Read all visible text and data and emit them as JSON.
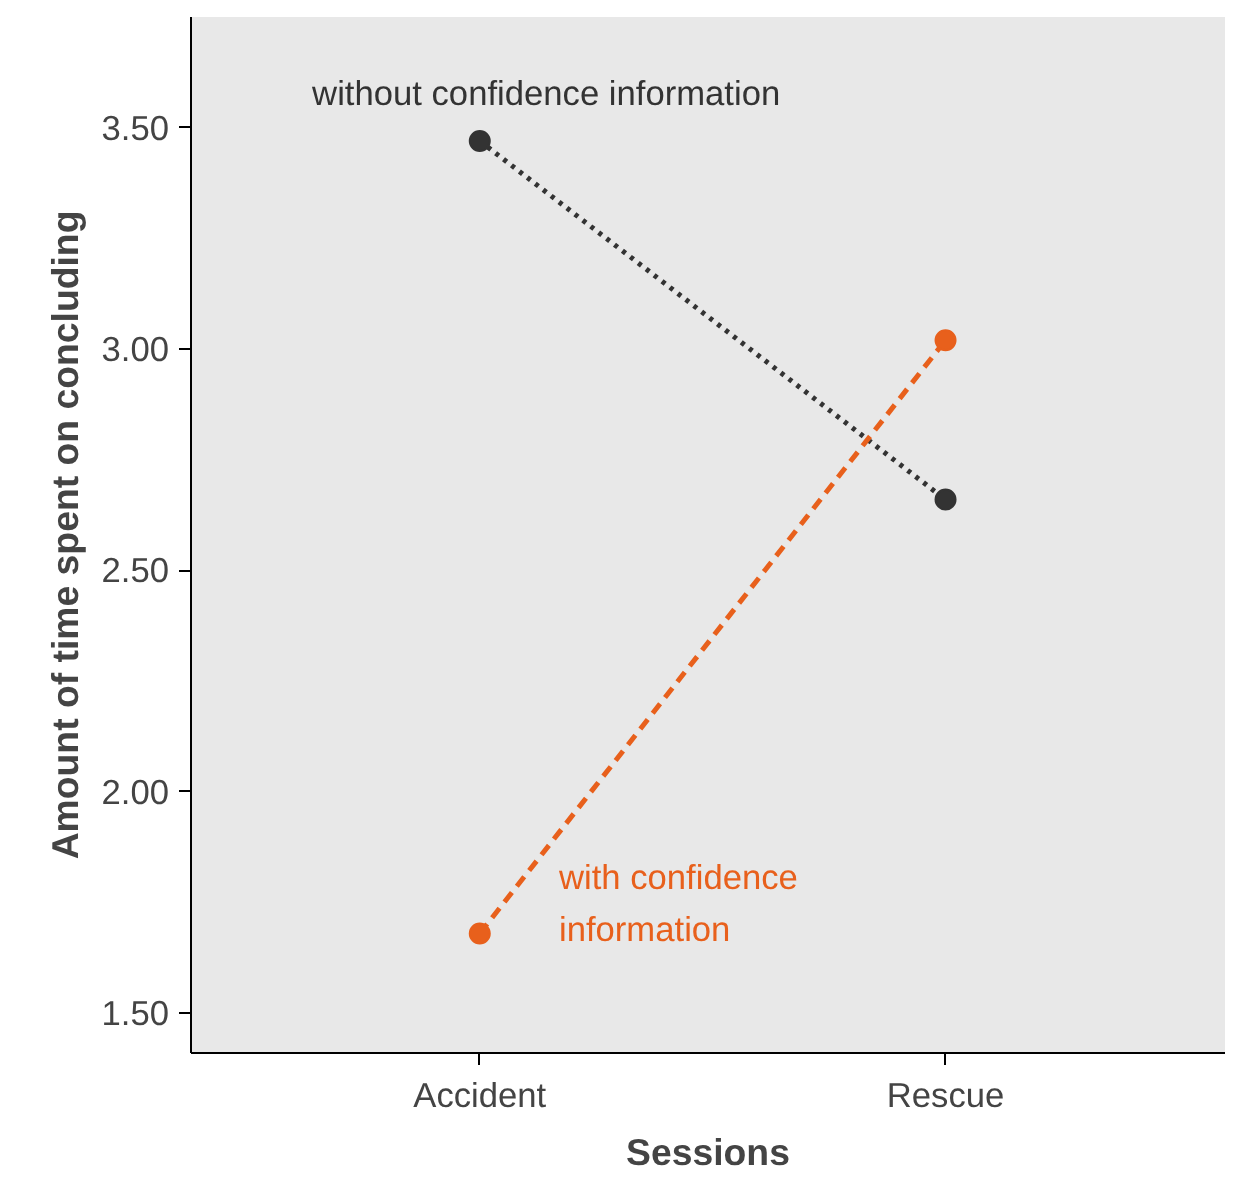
{
  "chart_data": {
    "type": "line",
    "xlabel": "Sessions",
    "ylabel": "Amount of time spent on concluding",
    "categories": [
      "Accident",
      "Rescue"
    ],
    "series": [
      {
        "name": "without confidence information",
        "color": "#333333",
        "values": [
          3.47,
          2.66
        ],
        "line_style": "dotted"
      },
      {
        "name": "with confidence\ninformation",
        "color": "#e8601c",
        "values": [
          1.68,
          3.02
        ],
        "line_style": "dashed"
      }
    ],
    "ylim": [
      1.41,
      3.75
    ],
    "yticks": [
      {
        "value": 1.5,
        "label": "1.50"
      },
      {
        "value": 2.0,
        "label": "2.00"
      },
      {
        "value": 2.5,
        "label": "2.50"
      },
      {
        "value": 3.0,
        "label": "3.00"
      },
      {
        "value": 3.5,
        "label": "3.50"
      }
    ],
    "marker": "circle"
  }
}
